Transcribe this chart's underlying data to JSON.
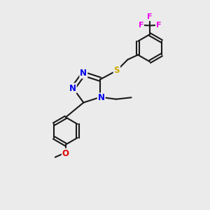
{
  "background_color": "#ebebeb",
  "bond_color": "#1a1a1a",
  "N_color": "#0000ee",
  "S_color": "#ccaa00",
  "O_color": "#dd0000",
  "F_color": "#ee00ee",
  "figsize": [
    3.0,
    3.0
  ],
  "dpi": 100,
  "xlim": [
    0,
    10
  ],
  "ylim": [
    0,
    10
  ]
}
